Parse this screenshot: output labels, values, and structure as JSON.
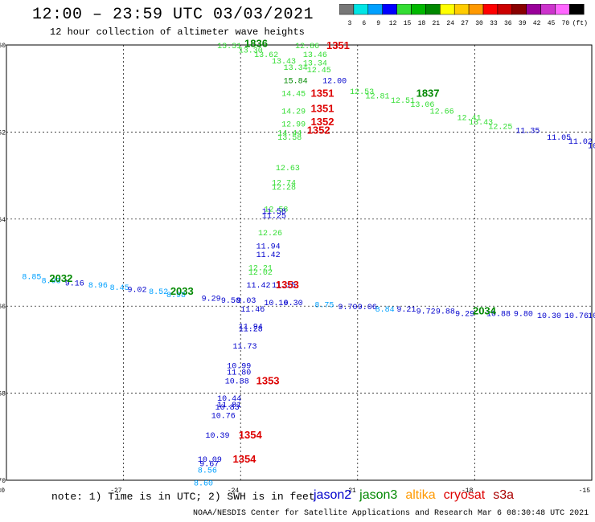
{
  "title": "12:00 – 23:59 UTC 03/03/2021",
  "subtitle": "12 hour collection of altimeter wave heights",
  "footer_note": "note: 1) Time is in UTC; 2) SWH is in feet",
  "credits": "NOAA/NESDIS Center for Satellite Applications and Research   Mar  6 08:30:48 UTC 2021",
  "satellites": [
    {
      "name": "jason2",
      "color": "#0000cc"
    },
    {
      "name": "jason3",
      "color": "#008800"
    },
    {
      "name": "altika",
      "color": "#ff9900"
    },
    {
      "name": "cryosat",
      "color": "#dd0000"
    },
    {
      "name": "s3a",
      "color": "#aa0000"
    }
  ],
  "color_scale": {
    "labels": [
      "3",
      "6",
      "9",
      "12",
      "15",
      "18",
      "21",
      "24",
      "27",
      "30",
      "33",
      "36",
      "39",
      "42",
      "45",
      "70",
      "(ft)"
    ],
    "colors": [
      "#777777",
      "#00e5e5",
      "#00a0ff",
      "#0000ff",
      "#33dd33",
      "#00b800",
      "#008800",
      "#ffff00",
      "#ffcc00",
      "#ff9900",
      "#ff0000",
      "#cc0000",
      "#880000",
      "#990099",
      "#cc33cc",
      "#ff66ff",
      "#000000"
    ]
  },
  "axes": {
    "lat_labels": [
      "-60",
      "-62",
      "-64",
      "-66",
      "-68",
      "-70"
    ],
    "lon_labels": [
      "-30",
      "-27",
      "-24",
      "-21",
      "-18",
      "-15"
    ]
  },
  "obs": [
    {
      "t": "13.31",
      "lon": -24.6,
      "lat": -60.0,
      "c": "#33dd33"
    },
    {
      "t": "13.30",
      "lon": -24.05,
      "lat": -60.1,
      "c": "#33dd33"
    },
    {
      "t": "13.62",
      "lon": -23.65,
      "lat": -60.2,
      "c": "#33dd33"
    },
    {
      "t": "13.43",
      "lon": -23.2,
      "lat": -60.35,
      "c": "#33dd33"
    },
    {
      "t": "13.34",
      "lon": -22.9,
      "lat": -60.5,
      "c": "#33dd33"
    },
    {
      "t": "12.86",
      "lon": -22.6,
      "lat": -60.0,
      "c": "#33dd33"
    },
    {
      "t": "13.46",
      "lon": -22.4,
      "lat": -60.2,
      "c": "#33dd33"
    },
    {
      "t": "13.34",
      "lon": -22.4,
      "lat": -60.4,
      "c": "#33dd33"
    },
    {
      "t": "12.45",
      "lon": -22.3,
      "lat": -60.55,
      "c": "#33dd33"
    },
    {
      "t": "15.84",
      "lon": -22.9,
      "lat": -60.8,
      "c": "#008800"
    },
    {
      "t": "12.00",
      "lon": -21.9,
      "lat": -60.8,
      "c": "#0000cc"
    },
    {
      "t": "14.45",
      "lon": -22.95,
      "lat": -61.1,
      "c": "#33dd33"
    },
    {
      "t": "12.53",
      "lon": -21.2,
      "lat": -61.05,
      "c": "#33dd33"
    },
    {
      "t": "12.81",
      "lon": -20.8,
      "lat": -61.15,
      "c": "#33dd33"
    },
    {
      "t": "12.51",
      "lon": -20.15,
      "lat": -61.25,
      "c": "#33dd33"
    },
    {
      "t": "13.06",
      "lon": -19.65,
      "lat": -61.35,
      "c": "#33dd33"
    },
    {
      "t": "12.66",
      "lon": -19.15,
      "lat": -61.5,
      "c": "#33dd33"
    },
    {
      "t": "12.41",
      "lon": -18.45,
      "lat": -61.65,
      "c": "#33dd33"
    },
    {
      "t": "13.43",
      "lon": -18.15,
      "lat": -61.75,
      "c": "#33dd33"
    },
    {
      "t": "12.25",
      "lon": -17.65,
      "lat": -61.85,
      "c": "#33dd33"
    },
    {
      "t": "11.35",
      "lon": -16.95,
      "lat": -61.95,
      "c": "#0000cc"
    },
    {
      "t": "11.05",
      "lon": -16.15,
      "lat": -62.1,
      "c": "#0000cc"
    },
    {
      "t": "11.02",
      "lon": -15.6,
      "lat": -62.2,
      "c": "#0000cc"
    },
    {
      "t": "10.65",
      "lon": -15.1,
      "lat": -62.3,
      "c": "#0000cc"
    },
    {
      "t": "11.22",
      "lon": -14.5,
      "lat": -62.4,
      "c": "#0000cc"
    },
    {
      "t": "11.11",
      "lon": -13.85,
      "lat": -62.55,
      "c": "#0000cc"
    },
    {
      "t": "10.87",
      "lon": -13.3,
      "lat": -62.65,
      "c": "#0000cc"
    },
    {
      "t": "10.45",
      "lon": -12.7,
      "lat": -62.75,
      "c": "#0000cc"
    },
    {
      "t": "14.29",
      "lon": -22.95,
      "lat": -61.5,
      "c": "#33dd33"
    },
    {
      "t": "12.99",
      "lon": -22.95,
      "lat": -61.8,
      "c": "#33dd33"
    },
    {
      "t": "14.44",
      "lon": -23.05,
      "lat": -62.0,
      "c": "#33dd33"
    },
    {
      "t": "13.58",
      "lon": -23.05,
      "lat": -62.1,
      "c": "#33dd33"
    },
    {
      "t": "12.63",
      "lon": -23.1,
      "lat": -62.8,
      "c": "#33dd33"
    },
    {
      "t": "12.74",
      "lon": -23.2,
      "lat": -63.15,
      "c": "#33dd33"
    },
    {
      "t": "12.28",
      "lon": -23.2,
      "lat": -63.25,
      "c": "#33dd33"
    },
    {
      "t": "12.58",
      "lon": -23.4,
      "lat": -63.75,
      "c": "#33dd33"
    },
    {
      "t": "11.58",
      "lon": -23.45,
      "lat": -63.8,
      "c": "#0000cc"
    },
    {
      "t": "11.25",
      "lon": -23.45,
      "lat": -63.9,
      "c": "#0000cc"
    },
    {
      "t": "12.26",
      "lon": -23.55,
      "lat": -64.3,
      "c": "#33dd33"
    },
    {
      "t": "11.94",
      "lon": -23.6,
      "lat": -64.6,
      "c": "#0000cc"
    },
    {
      "t": "11.42",
      "lon": -23.6,
      "lat": -64.8,
      "c": "#0000cc"
    },
    {
      "t": "12.21",
      "lon": -23.8,
      "lat": -65.1,
      "c": "#33dd33"
    },
    {
      "t": "12.02",
      "lon": -23.8,
      "lat": -65.2,
      "c": "#33dd33"
    },
    {
      "t": "11.42",
      "lon": -23.85,
      "lat": -65.5,
      "c": "#0000cc"
    },
    {
      "t": "11.15",
      "lon": -23.2,
      "lat": -65.5,
      "c": "#0000cc"
    },
    {
      "t": "9.03",
      "lon": -24.1,
      "lat": -65.85,
      "c": "#0000cc"
    },
    {
      "t": "10.16",
      "lon": -23.4,
      "lat": -65.9,
      "c": "#0000cc"
    },
    {
      "t": "11.46",
      "lon": -24.0,
      "lat": -66.05,
      "c": "#0000cc"
    },
    {
      "t": "9.30",
      "lon": -22.9,
      "lat": -65.9,
      "c": "#0000cc"
    },
    {
      "t": "8.75",
      "lon": -22.1,
      "lat": -65.95,
      "c": "#00a0ff"
    },
    {
      "t": "9.70",
      "lon": -21.5,
      "lat": -66.0,
      "c": "#0000cc"
    },
    {
      "t": "9.06",
      "lon": -21.0,
      "lat": -66.0,
      "c": "#0000cc"
    },
    {
      "t": "8.84",
      "lon": -20.55,
      "lat": -66.05,
      "c": "#00a0ff"
    },
    {
      "t": "9.21",
      "lon": -20.0,
      "lat": -66.05,
      "c": "#0000cc"
    },
    {
      "t": "9.72",
      "lon": -19.5,
      "lat": -66.1,
      "c": "#0000cc"
    },
    {
      "t": "9.88",
      "lon": -19.0,
      "lat": -66.1,
      "c": "#0000cc"
    },
    {
      "t": "9.29",
      "lon": -18.5,
      "lat": -66.15,
      "c": "#0000cc"
    },
    {
      "t": "10.88",
      "lon": -17.7,
      "lat": -66.15,
      "c": "#0000cc"
    },
    {
      "t": "9.80",
      "lon": -17.0,
      "lat": -66.15,
      "c": "#0000cc"
    },
    {
      "t": "10.30",
      "lon": -16.4,
      "lat": -66.2,
      "c": "#0000cc"
    },
    {
      "t": "10.76",
      "lon": -15.7,
      "lat": -66.2,
      "c": "#0000cc"
    },
    {
      "t": "10.38",
      "lon": -15.1,
      "lat": -66.2,
      "c": "#0000cc"
    },
    {
      "t": "10.11",
      "lon": -14.5,
      "lat": -66.2,
      "c": "#0000cc"
    },
    {
      "t": "8.85",
      "lon": -29.6,
      "lat": -65.3,
      "c": "#00a0ff"
    },
    {
      "t": "8.93",
      "lon": -29.1,
      "lat": -65.4,
      "c": "#00a0ff"
    },
    {
      "t": "9.16",
      "lon": -28.5,
      "lat": -65.45,
      "c": "#0000cc"
    },
    {
      "t": "8.96",
      "lon": -27.9,
      "lat": -65.5,
      "c": "#00a0ff"
    },
    {
      "t": "8.45",
      "lon": -27.35,
      "lat": -65.55,
      "c": "#00a0ff"
    },
    {
      "t": "9.02",
      "lon": -26.9,
      "lat": -65.6,
      "c": "#0000cc"
    },
    {
      "t": "8.52",
      "lon": -26.35,
      "lat": -65.65,
      "c": "#00a0ff"
    },
    {
      "t": "8.98",
      "lon": -25.9,
      "lat": -65.72,
      "c": "#00a0ff"
    },
    {
      "t": "9.29",
      "lon": -25.0,
      "lat": -65.8,
      "c": "#0000cc"
    },
    {
      "t": "9.50",
      "lon": -24.5,
      "lat": -65.85,
      "c": "#0000cc"
    },
    {
      "t": "11.94",
      "lon": -24.05,
      "lat": -66.45,
      "c": "#0000cc"
    },
    {
      "t": "11.28",
      "lon": -24.05,
      "lat": -66.5,
      "c": "#0000cc"
    },
    {
      "t": "11.73",
      "lon": -24.2,
      "lat": -66.9,
      "c": "#0000cc"
    },
    {
      "t": "10.99",
      "lon": -24.35,
      "lat": -67.35,
      "c": "#0000cc"
    },
    {
      "t": "11.80",
      "lon": -24.35,
      "lat": -67.5,
      "c": "#0000cc"
    },
    {
      "t": "10.88",
      "lon": -24.4,
      "lat": -67.7,
      "c": "#0000cc"
    },
    {
      "t": "10.44",
      "lon": -24.6,
      "lat": -68.1,
      "c": "#0000cc"
    },
    {
      "t": "11.81",
      "lon": -24.6,
      "lat": -68.25,
      "c": "#0000cc"
    },
    {
      "t": "10.83",
      "lon": -24.65,
      "lat": -68.3,
      "c": "#0000cc"
    },
    {
      "t": "10.76",
      "lon": -24.75,
      "lat": -68.5,
      "c": "#0000cc"
    },
    {
      "t": "10.39",
      "lon": -24.9,
      "lat": -68.95,
      "c": "#0000cc"
    },
    {
      "t": "10.09",
      "lon": -25.1,
      "lat": -69.5,
      "c": "#0000cc"
    },
    {
      "t": "9.67",
      "lon": -25.05,
      "lat": -69.6,
      "c": "#0000cc"
    },
    {
      "t": "8.56",
      "lon": -25.1,
      "lat": -69.75,
      "c": "#00a0ff"
    },
    {
      "t": "8.60",
      "lon": -25.2,
      "lat": -70.05,
      "c": "#00a0ff"
    }
  ],
  "passes": [
    {
      "t": "1836",
      "lon": -23.9,
      "lat": -59.95,
      "c": "#008800"
    },
    {
      "t": "1351",
      "lon": -21.8,
      "lat": -60.0,
      "c": "#dd0000"
    },
    {
      "t": "1837",
      "lon": -19.5,
      "lat": -61.1,
      "c": "#008800"
    },
    {
      "t": "1351",
      "lon": -22.2,
      "lat": -61.1,
      "c": "#dd0000"
    },
    {
      "t": "1351",
      "lon": -22.2,
      "lat": -61.45,
      "c": "#dd0000"
    },
    {
      "t": "1352",
      "lon": -22.2,
      "lat": -61.75,
      "c": "#dd0000"
    },
    {
      "t": "1352",
      "lon": -22.3,
      "lat": -61.95,
      "c": "#dd0000"
    },
    {
      "t": "2032",
      "lon": -28.9,
      "lat": -65.35,
      "c": "#008800"
    },
    {
      "t": "2033",
      "lon": -25.8,
      "lat": -65.65,
      "c": "#008800"
    },
    {
      "t": "1353",
      "lon": -23.1,
      "lat": -65.5,
      "c": "#dd0000"
    },
    {
      "t": "2034",
      "lon": -18.05,
      "lat": -66.1,
      "c": "#008800"
    },
    {
      "t": "1353",
      "lon": -23.6,
      "lat": -67.7,
      "c": "#dd0000"
    },
    {
      "t": "1354",
      "lon": -24.05,
      "lat": -68.95,
      "c": "#dd0000"
    },
    {
      "t": "1354",
      "lon": -24.2,
      "lat": -69.5,
      "c": "#dd0000"
    }
  ]
}
